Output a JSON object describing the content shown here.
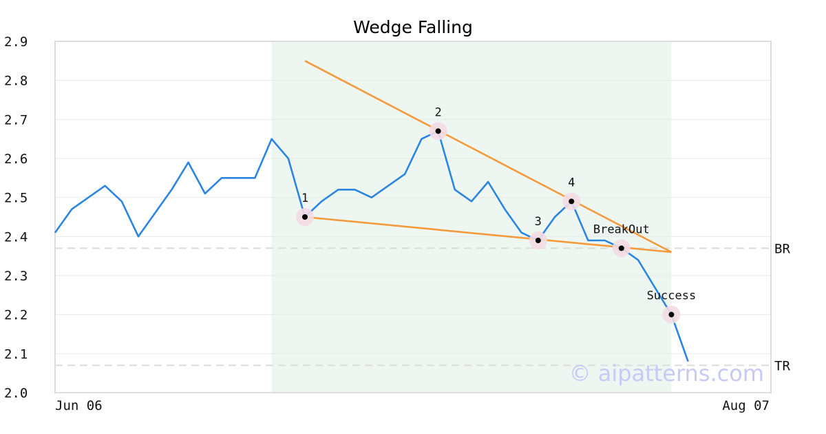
{
  "chart_data": {
    "type": "line",
    "title": "Wedge Falling",
    "xlabel": "",
    "ylabel": "",
    "ylim": [
      2.0,
      2.9
    ],
    "yticks": [
      2.0,
      2.1,
      2.2,
      2.3,
      2.4,
      2.5,
      2.6,
      2.7,
      2.8,
      2.9
    ],
    "x_tick_labels": [
      "Jun 06",
      "Aug 07"
    ],
    "grid": "horizontal",
    "series": [
      {
        "values": [
          2.41,
          2.47,
          2.5,
          2.53,
          2.49,
          2.4,
          2.46,
          2.52,
          2.59,
          2.51,
          2.55,
          2.55,
          2.55,
          2.65,
          2.6,
          2.45,
          2.49,
          2.52,
          2.52,
          2.5,
          2.53,
          2.56,
          2.65,
          2.67,
          2.52,
          2.49,
          2.54,
          2.47,
          2.41,
          2.39,
          2.45,
          2.49,
          2.39,
          2.39,
          2.37,
          2.34,
          2.27,
          2.2,
          2.08
        ],
        "color": "#2a85e0"
      }
    ],
    "pattern_zone": {
      "start_index": 13,
      "end_index": 37,
      "color": "#eef6f2"
    },
    "trend_lines": [
      {
        "from": [
          15,
          2.85
        ],
        "to": [
          37,
          2.36
        ],
        "color": "#f59a3b"
      },
      {
        "from": [
          15,
          2.45
        ],
        "to": [
          37,
          2.36
        ],
        "color": "#f59a3b"
      }
    ],
    "annotations": [
      {
        "index": 15,
        "value": 2.45,
        "label": "1"
      },
      {
        "index": 23,
        "value": 2.67,
        "label": "2"
      },
      {
        "index": 29,
        "value": 2.39,
        "label": "3"
      },
      {
        "index": 31,
        "value": 2.49,
        "label": "4"
      },
      {
        "index": 34,
        "value": 2.37,
        "label": "BreakOut"
      },
      {
        "index": 37,
        "value": 2.2,
        "label": "Success"
      }
    ],
    "levels": [
      {
        "value": 2.37,
        "label": "BR"
      },
      {
        "value": 2.07,
        "label": "TR"
      }
    ],
    "watermark": "© aipatterns.com",
    "colors": {
      "line": "#2a85e0",
      "trend": "#f59a3b",
      "halo": "#f3dce4",
      "level": "#dddddd",
      "grid": "#e8e8e8",
      "frame": "#dddddd"
    }
  }
}
